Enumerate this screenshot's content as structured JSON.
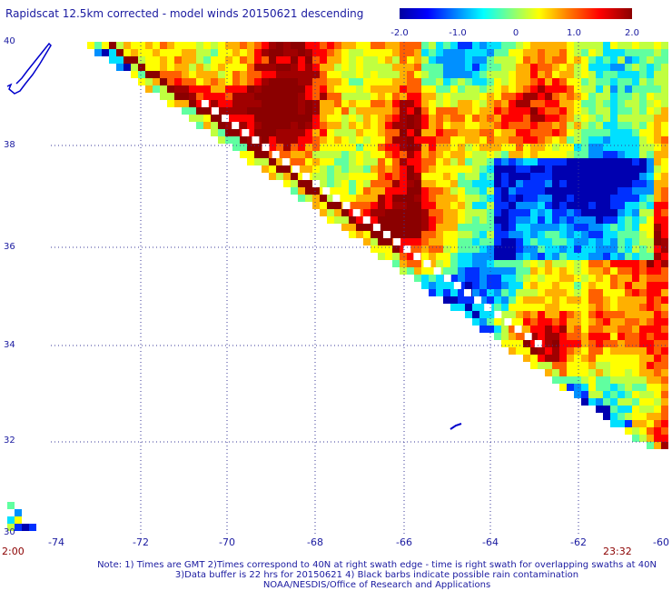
{
  "title": "Rapidscat 12.5km corrected - model winds 20150621 descending",
  "colorbar": {
    "ticks": [
      {
        "label": "-2.0",
        "value": -2.0
      },
      {
        "label": "-1.0",
        "value": -1.0
      },
      {
        "label": "0",
        "value": 0
      },
      {
        "label": "1.0",
        "value": 1.0
      },
      {
        "label": "2.0",
        "value": 2.0
      }
    ],
    "min": -2.0,
    "max": 2.0
  },
  "map": {
    "lat_labels": [
      "40",
      "38",
      "36",
      "34",
      "32",
      "30"
    ],
    "lon_labels": [
      "-74",
      "-72",
      "-70",
      "-68",
      "-66",
      "-64",
      "-62",
      "-60"
    ],
    "lat_range": [
      30,
      40
    ],
    "lon_range": [
      -74,
      -60
    ],
    "grid": true
  },
  "time_left": "2:00",
  "time_right": "23:32",
  "notes": {
    "line1": "Note: 1) Times are GMT 2)Times correspond to 40N at right swath edge - time is right swath for overlapping swaths at 40N",
    "line2": "3)Data buffer is 22 hrs for 20150621 4) Black barbs indicate possible rain contamination",
    "line3": "NOAA/NESDIS/Office of Research and Applications"
  }
}
